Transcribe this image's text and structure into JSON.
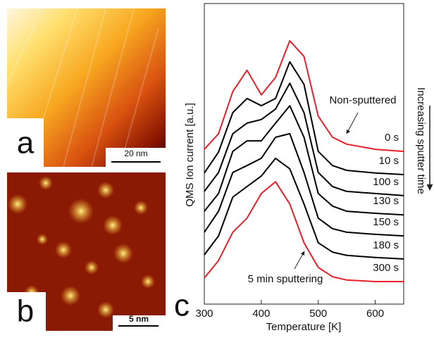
{
  "panels": {
    "a": {
      "letter": "a",
      "scale": "20 nm"
    },
    "b": {
      "letter": "b",
      "scale": "5 nm"
    },
    "c": {
      "letter": "c"
    }
  },
  "chart_data": {
    "type": "line",
    "xlabel": "Temperature [K]",
    "ylabel": "QMS Ion current [a.u.]",
    "side_label": "Increasing sputter time",
    "annotations": [
      "Non-sputtered",
      "5 min sputtering"
    ],
    "x": [
      300,
      325,
      350,
      375,
      400,
      425,
      450,
      475,
      500,
      525,
      550,
      600,
      650
    ],
    "xlim": [
      300,
      650
    ],
    "xticks": [
      300,
      400,
      500,
      600
    ],
    "ylim": [
      0,
      10
    ],
    "series": [
      {
        "name": "0 s",
        "color": "#e8202a",
        "values": [
          5.15,
          5.67,
          7.07,
          7.78,
          6.96,
          7.54,
          8.76,
          8.24,
          6.25,
          5.55,
          5.32,
          5.15,
          5.08
        ]
      },
      {
        "name": "10 s",
        "color": "#000000",
        "values": [
          4.36,
          5.06,
          6.37,
          6.84,
          6.6,
          6.84,
          8.06,
          7.31,
          5.08,
          4.61,
          4.45,
          4.36,
          4.31
        ]
      },
      {
        "name": "100 s",
        "color": "#000000",
        "values": [
          3.75,
          4.38,
          5.67,
          6.02,
          6.14,
          6.49,
          7.35,
          6.37,
          4.38,
          3.91,
          3.75,
          3.68,
          3.61
        ]
      },
      {
        "name": "130 s",
        "color": "#000000",
        "values": [
          3.09,
          3.68,
          5.08,
          5.43,
          5.43,
          6.02,
          6.6,
          5.55,
          3.68,
          3.26,
          3.09,
          3.02,
          2.97
        ]
      },
      {
        "name": "150 s",
        "color": "#000000",
        "values": [
          2.39,
          3.09,
          4.38,
          4.61,
          4.85,
          5.55,
          5.67,
          4.38,
          2.86,
          2.51,
          2.39,
          2.32,
          2.27
        ]
      },
      {
        "name": "180 s",
        "color": "#000000",
        "values": [
          1.64,
          2.27,
          3.56,
          3.91,
          4.26,
          4.85,
          4.5,
          3.33,
          2.04,
          1.73,
          1.62,
          1.55,
          1.5
        ]
      },
      {
        "name": "300 s",
        "color": "#e8202a",
        "values": [
          0.87,
          1.45,
          2.39,
          2.86,
          3.68,
          4.07,
          3.33,
          2.04,
          1.22,
          0.91,
          0.8,
          0.75,
          0.75
        ]
      }
    ]
  }
}
